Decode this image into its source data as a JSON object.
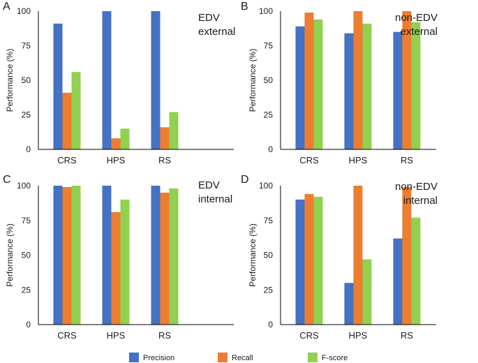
{
  "colors": {
    "precision": "#4472C4",
    "recall": "#ED7D31",
    "fscore": "#92D050",
    "axis": "#000000"
  },
  "legend": [
    {
      "key": "precision",
      "label": "Precision"
    },
    {
      "key": "recall",
      "label": "Recall"
    },
    {
      "key": "fscore",
      "label": "F-score"
    }
  ],
  "chart_data": [
    {
      "panel": "A",
      "type": "bar",
      "title_lines": [
        "EDV",
        "external"
      ],
      "ylabel": "Performance (%)",
      "ylim": [
        0,
        100
      ],
      "yticks": [
        0,
        25,
        50,
        75,
        100
      ],
      "categories": [
        "CRS",
        "HPS",
        "RS"
      ],
      "series": [
        {
          "name": "Precision",
          "values": [
            91,
            100,
            100
          ]
        },
        {
          "name": "Recall",
          "values": [
            41,
            8,
            16
          ]
        },
        {
          "name": "F-score",
          "values": [
            56,
            15,
            27
          ]
        }
      ]
    },
    {
      "panel": "B",
      "type": "bar",
      "title_lines": [
        "non-EDV",
        "external"
      ],
      "ylabel": "Performance (%)",
      "ylim": [
        0,
        100
      ],
      "yticks": [
        0,
        25,
        50,
        75,
        100
      ],
      "categories": [
        "CRS",
        "HPS",
        "RS"
      ],
      "series": [
        {
          "name": "Precision",
          "values": [
            89,
            84,
            85
          ]
        },
        {
          "name": "Recall",
          "values": [
            99,
            100,
            100
          ]
        },
        {
          "name": "F-score",
          "values": [
            94,
            91,
            92
          ]
        }
      ]
    },
    {
      "panel": "C",
      "type": "bar",
      "title_lines": [
        "EDV",
        "internal"
      ],
      "ylabel": "Performance (%)",
      "ylim": [
        0,
        100
      ],
      "yticks": [
        0,
        25,
        50,
        75,
        100
      ],
      "categories": [
        "CRS",
        "HPS",
        "RS"
      ],
      "series": [
        {
          "name": "Precision",
          "values": [
            100,
            100,
            100
          ]
        },
        {
          "name": "Recall",
          "values": [
            99,
            81,
            95
          ]
        },
        {
          "name": "F-score",
          "values": [
            100,
            90,
            98
          ]
        }
      ]
    },
    {
      "panel": "D",
      "type": "bar",
      "title_lines": [
        "non-EDV",
        "internal"
      ],
      "ylabel": "Performance (%)",
      "ylim": [
        0,
        100
      ],
      "yticks": [
        0,
        25,
        50,
        75,
        100
      ],
      "categories": [
        "CRS",
        "HPS",
        "RS"
      ],
      "series": [
        {
          "name": "Precision",
          "values": [
            90,
            30,
            62
          ]
        },
        {
          "name": "Recall",
          "values": [
            94,
            100,
            99
          ]
        },
        {
          "name": "F-score",
          "values": [
            92,
            47,
            77
          ]
        }
      ]
    }
  ]
}
